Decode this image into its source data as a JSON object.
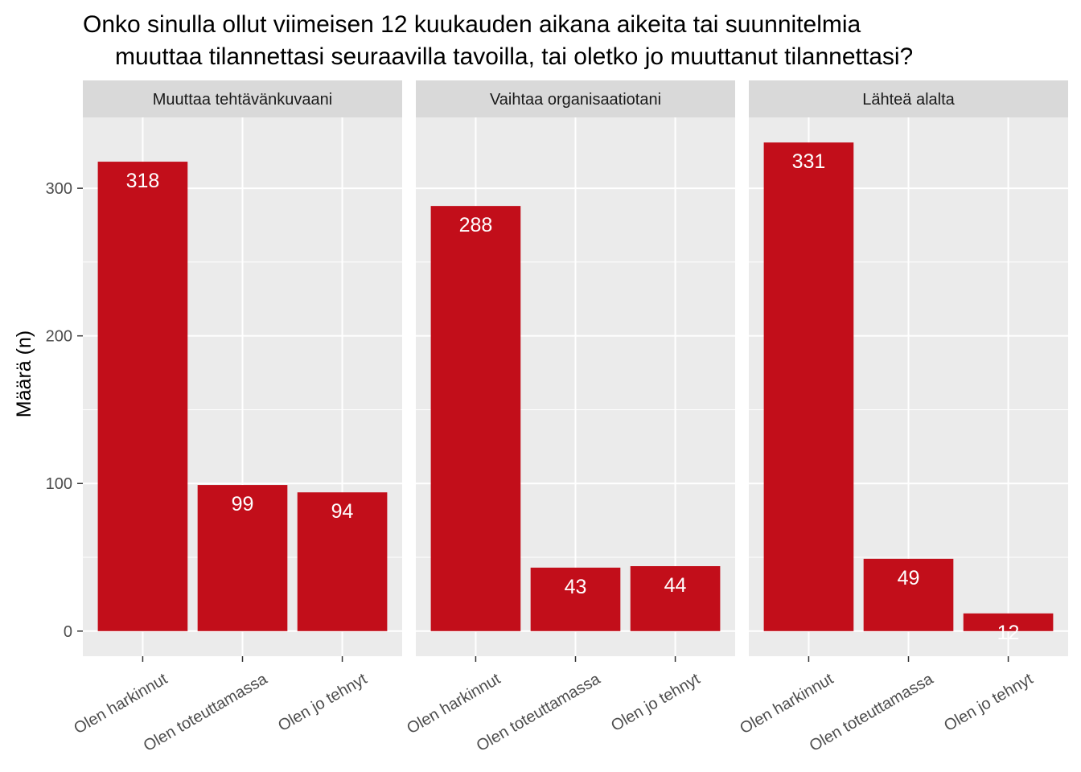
{
  "chart_data": {
    "type": "bar",
    "title_line1": "Onko sinulla ollut viimeisen 12 kuukauden aikana aikeita tai suunnitelmia",
    "title_line2": "muuttaa tilannettasi seuraavilla tavoilla, tai oletko jo muuttanut tilannettasi?",
    "ylabel": "Määrä (n)",
    "xlabel": "",
    "ylim": [
      -17,
      348
    ],
    "yticks": [
      0,
      100,
      200,
      300
    ],
    "categories": [
      "Olen harkinnut",
      "Olen toteuttamassa",
      "Olen jo tehnyt"
    ],
    "bar_color": "#C20E1A",
    "panel_background": "#EBEBEB",
    "strip_background": "#D9D9D9",
    "grid": true,
    "legend": "none",
    "panels": [
      {
        "name": "Muuttaa tehtävänkuvaani",
        "values": [
          318,
          99,
          94
        ]
      },
      {
        "name": "Vaihtaa organisaatiotani",
        "values": [
          288,
          43,
          44
        ]
      },
      {
        "name": "Lähteä alalta",
        "values": [
          331,
          49,
          12
        ]
      }
    ]
  }
}
